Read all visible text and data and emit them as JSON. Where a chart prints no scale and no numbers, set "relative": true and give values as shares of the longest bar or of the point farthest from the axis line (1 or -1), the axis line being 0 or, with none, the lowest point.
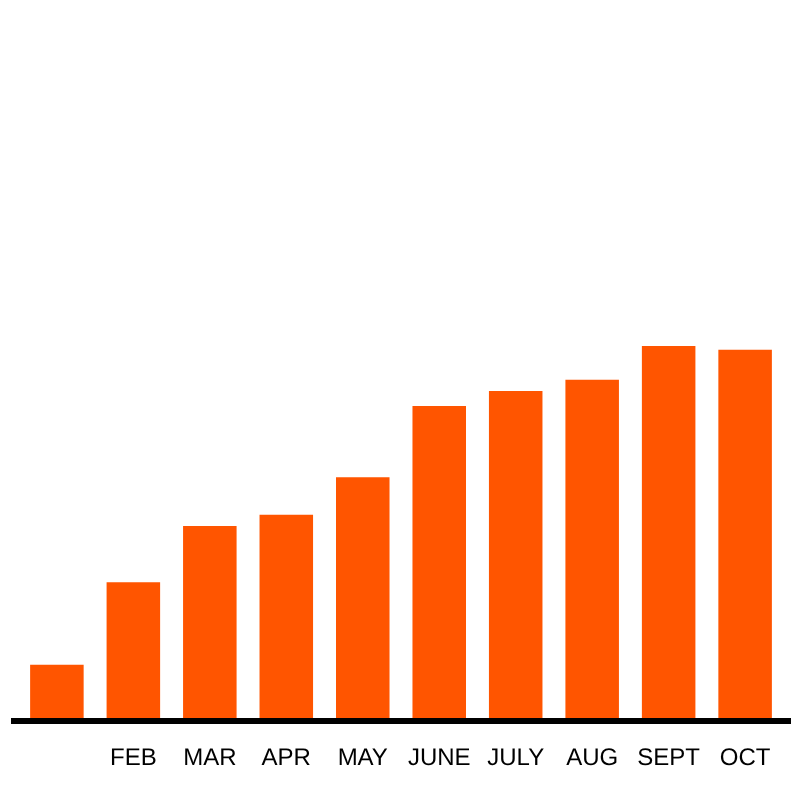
{
  "chart_data": {
    "type": "bar",
    "relative": true,
    "categories": [
      null,
      "FEB",
      "MAR",
      "APR",
      "MAY",
      "JUNE",
      "JULY",
      "AUG",
      "SEPT",
      "OCT"
    ],
    "values": [
      0.15,
      0.37,
      0.52,
      0.55,
      0.65,
      0.84,
      0.88,
      0.91,
      1.0,
      0.99
    ],
    "color": "#ff5500",
    "grid": false
  }
}
